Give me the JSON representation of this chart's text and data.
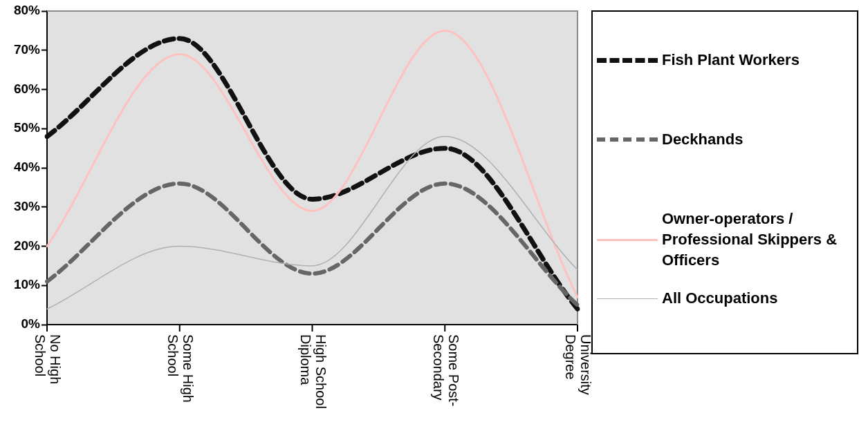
{
  "chart_data": {
    "type": "line",
    "categories": [
      "No High School",
      "Some High School",
      "High School Diploma",
      "Some Post-Secondary",
      "University Degree"
    ],
    "series": [
      {
        "name": "Fish Plant Workers",
        "color": "#111111",
        "line_style": "dashed",
        "values": [
          48,
          73,
          32,
          45,
          4
        ]
      },
      {
        "name": "Deckhands",
        "color": "#666666",
        "line_style": "dashed",
        "values": [
          11,
          36,
          13,
          36,
          5
        ]
      },
      {
        "name": "Owner-operators / Professional Skippers & Officers",
        "color": "#ffc0c0",
        "line_style": "solid",
        "values": [
          20,
          69,
          29,
          75,
          7
        ]
      },
      {
        "name": "All Occupations",
        "color": "#b0b0b0",
        "line_style": "solid",
        "values": [
          4,
          20,
          15,
          48,
          14
        ]
      }
    ],
    "ylim": [
      0,
      80
    ],
    "yticks": [
      {
        "value": 0,
        "label": "0%"
      },
      {
        "value": 10,
        "label": "10%"
      },
      {
        "value": 20,
        "label": "20%"
      },
      {
        "value": 30,
        "label": "30%"
      },
      {
        "value": 40,
        "label": "40%"
      },
      {
        "value": 50,
        "label": "50%"
      },
      {
        "value": 60,
        "label": "60%"
      },
      {
        "value": 70,
        "label": "70%"
      },
      {
        "value": 80,
        "label": "80%"
      }
    ],
    "grid": false,
    "legend": "right",
    "marker": "none"
  }
}
